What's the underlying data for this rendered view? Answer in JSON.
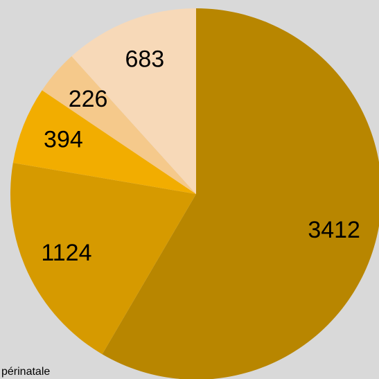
{
  "chart_data": {
    "type": "pie",
    "values": [
      3412,
      1124,
      394,
      226,
      683
    ],
    "colors": [
      "#b88600",
      "#d69a00",
      "#f2ad00",
      "#f5c98b",
      "#f7d9b8"
    ],
    "annotation": "périnatale"
  }
}
